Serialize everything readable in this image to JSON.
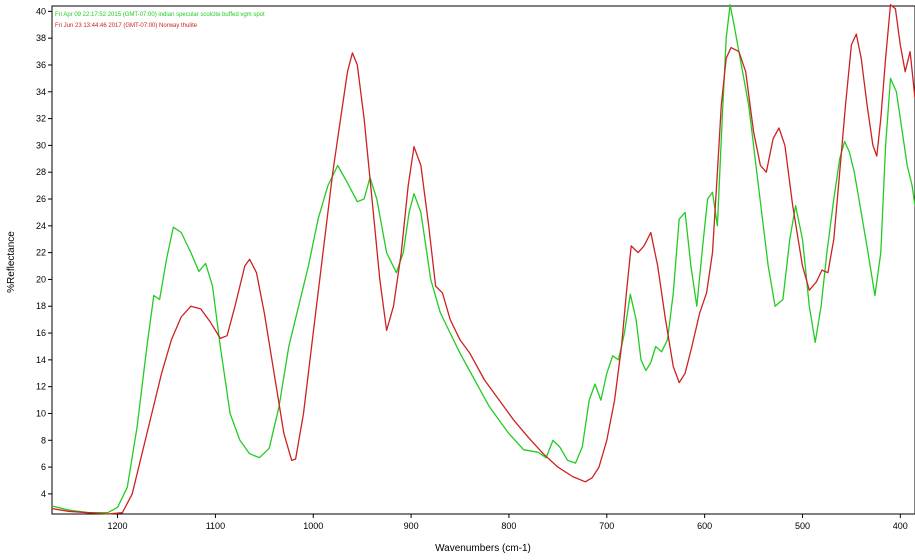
{
  "chart_data": {
    "type": "line",
    "xlabel": "Wavenumbers (cm-1)",
    "ylabel": "%Reflectance",
    "xlim": [
      1267,
      385
    ],
    "ylim": [
      2.5,
      40.4
    ],
    "x_ticks": [
      1200,
      1100,
      1000,
      900,
      800,
      700,
      600,
      500,
      400
    ],
    "y_ticks": [
      4,
      6,
      8,
      10,
      12,
      14,
      16,
      18,
      20,
      22,
      24,
      26,
      28,
      30,
      32,
      34,
      36,
      38,
      40
    ],
    "grid": false,
    "legend_position": "top-left",
    "series": [
      {
        "name": "Fri Apr 09 22:17:52 2015 (GMT-07:00) indian specular scolcite buffed vgm spot",
        "color": "#22cc22",
        "points": [
          [
            1267,
            3.1
          ],
          [
            1250,
            2.8
          ],
          [
            1230,
            2.6
          ],
          [
            1210,
            2.6
          ],
          [
            1200,
            3.0
          ],
          [
            1190,
            4.5
          ],
          [
            1180,
            9.0
          ],
          [
            1170,
            15.0
          ],
          [
            1163,
            18.8
          ],
          [
            1157,
            18.5
          ],
          [
            1150,
            21.5
          ],
          [
            1143,
            23.9
          ],
          [
            1135,
            23.5
          ],
          [
            1125,
            22.0
          ],
          [
            1117,
            20.6
          ],
          [
            1110,
            21.2
          ],
          [
            1103,
            19.5
          ],
          [
            1095,
            15.0
          ],
          [
            1085,
            10.0
          ],
          [
            1075,
            8.0
          ],
          [
            1065,
            7.0
          ],
          [
            1055,
            6.7
          ],
          [
            1045,
            7.4
          ],
          [
            1035,
            10.5
          ],
          [
            1025,
            15.0
          ],
          [
            1015,
            18.0
          ],
          [
            1005,
            21.0
          ],
          [
            995,
            24.5
          ],
          [
            985,
            27.0
          ],
          [
            975,
            28.5
          ],
          [
            965,
            27.2
          ],
          [
            955,
            25.8
          ],
          [
            948,
            26.0
          ],
          [
            942,
            27.6
          ],
          [
            935,
            26.0
          ],
          [
            925,
            22.0
          ],
          [
            915,
            20.5
          ],
          [
            908,
            22.0
          ],
          [
            902,
            25.0
          ],
          [
            897,
            26.4
          ],
          [
            890,
            25.0
          ],
          [
            880,
            20.0
          ],
          [
            870,
            17.5
          ],
          [
            860,
            16.0
          ],
          [
            850,
            14.5
          ],
          [
            835,
            12.5
          ],
          [
            820,
            10.5
          ],
          [
            800,
            8.5
          ],
          [
            785,
            7.3
          ],
          [
            770,
            7.1
          ],
          [
            762,
            6.7
          ],
          [
            755,
            8.0
          ],
          [
            748,
            7.5
          ],
          [
            740,
            6.5
          ],
          [
            732,
            6.3
          ],
          [
            725,
            7.5
          ],
          [
            718,
            11.0
          ],
          [
            712,
            12.2
          ],
          [
            706,
            11.0
          ],
          [
            700,
            13.0
          ],
          [
            694,
            14.3
          ],
          [
            688,
            14.0
          ],
          [
            682,
            16.0
          ],
          [
            676,
            18.9
          ],
          [
            670,
            17.0
          ],
          [
            665,
            14.0
          ],
          [
            660,
            13.2
          ],
          [
            655,
            13.8
          ],
          [
            650,
            15.0
          ],
          [
            644,
            14.6
          ],
          [
            638,
            15.5
          ],
          [
            632,
            19.0
          ],
          [
            626,
            24.5
          ],
          [
            620,
            25.0
          ],
          [
            614,
            21.0
          ],
          [
            608,
            18.0
          ],
          [
            602,
            22.5
          ],
          [
            597,
            26.0
          ],
          [
            592,
            26.5
          ],
          [
            587,
            24.0
          ],
          [
            582,
            32.0
          ],
          [
            578,
            38.0
          ],
          [
            574,
            40.5
          ],
          [
            570,
            39.0
          ],
          [
            565,
            37.0
          ],
          [
            555,
            33.0
          ],
          [
            545,
            27.0
          ],
          [
            535,
            21.0
          ],
          [
            528,
            18.0
          ],
          [
            520,
            18.5
          ],
          [
            513,
            23.0
          ],
          [
            507,
            25.5
          ],
          [
            500,
            23.0
          ],
          [
            493,
            18.0
          ],
          [
            487,
            15.3
          ],
          [
            481,
            18.0
          ],
          [
            475,
            22.0
          ],
          [
            468,
            26.0
          ],
          [
            462,
            29.0
          ],
          [
            457,
            30.3
          ],
          [
            452,
            29.5
          ],
          [
            447,
            28.0
          ],
          [
            440,
            25.0
          ],
          [
            433,
            22.0
          ],
          [
            426,
            18.8
          ],
          [
            420,
            22.0
          ],
          [
            415,
            30.0
          ],
          [
            410,
            35.0
          ],
          [
            404,
            34.0
          ],
          [
            398,
            31.0
          ],
          [
            393,
            28.5
          ],
          [
            388,
            27.0
          ],
          [
            385,
            25.5
          ]
        ]
      },
      {
        "name": "Fri Jun 23 13:44:46 2017 (GMT-07:00) Norway thulite",
        "color": "#cc2222",
        "points": [
          [
            1267,
            2.9
          ],
          [
            1250,
            2.7
          ],
          [
            1230,
            2.6
          ],
          [
            1210,
            2.5
          ],
          [
            1195,
            2.6
          ],
          [
            1185,
            4.0
          ],
          [
            1175,
            7.0
          ],
          [
            1165,
            10.0
          ],
          [
            1155,
            13.0
          ],
          [
            1145,
            15.5
          ],
          [
            1135,
            17.2
          ],
          [
            1125,
            18.0
          ],
          [
            1115,
            17.8
          ],
          [
            1105,
            16.8
          ],
          [
            1095,
            15.6
          ],
          [
            1088,
            15.8
          ],
          [
            1080,
            18.0
          ],
          [
            1070,
            21.0
          ],
          [
            1065,
            21.5
          ],
          [
            1058,
            20.5
          ],
          [
            1050,
            17.5
          ],
          [
            1040,
            13.0
          ],
          [
            1030,
            8.5
          ],
          [
            1022,
            6.5
          ],
          [
            1018,
            6.6
          ],
          [
            1010,
            10.0
          ],
          [
            1000,
            16.0
          ],
          [
            990,
            22.0
          ],
          [
            980,
            28.0
          ],
          [
            972,
            32.0
          ],
          [
            965,
            35.5
          ],
          [
            960,
            36.9
          ],
          [
            955,
            36.0
          ],
          [
            948,
            32.0
          ],
          [
            940,
            26.0
          ],
          [
            932,
            20.0
          ],
          [
            925,
            16.2
          ],
          [
            918,
            18.0
          ],
          [
            910,
            22.0
          ],
          [
            903,
            27.0
          ],
          [
            897,
            29.9
          ],
          [
            890,
            28.5
          ],
          [
            882,
            24.0
          ],
          [
            875,
            19.5
          ],
          [
            868,
            19.0
          ],
          [
            860,
            17.0
          ],
          [
            850,
            15.5
          ],
          [
            840,
            14.5
          ],
          [
            825,
            12.5
          ],
          [
            810,
            11.0
          ],
          [
            795,
            9.5
          ],
          [
            780,
            8.2
          ],
          [
            765,
            7.0
          ],
          [
            750,
            6.0
          ],
          [
            735,
            5.3
          ],
          [
            722,
            4.9
          ],
          [
            715,
            5.2
          ],
          [
            708,
            6.0
          ],
          [
            700,
            8.0
          ],
          [
            692,
            11.0
          ],
          [
            685,
            15.0
          ],
          [
            680,
            19.0
          ],
          [
            675,
            22.5
          ],
          [
            668,
            22.0
          ],
          [
            662,
            22.5
          ],
          [
            655,
            23.5
          ],
          [
            648,
            21.0
          ],
          [
            640,
            17.0
          ],
          [
            632,
            13.5
          ],
          [
            626,
            12.3
          ],
          [
            620,
            13.0
          ],
          [
            613,
            15.0
          ],
          [
            605,
            17.5
          ],
          [
            598,
            19.0
          ],
          [
            592,
            22.0
          ],
          [
            587,
            28.0
          ],
          [
            583,
            33.0
          ],
          [
            578,
            36.5
          ],
          [
            573,
            37.3
          ],
          [
            565,
            37.0
          ],
          [
            558,
            35.5
          ],
          [
            550,
            31.0
          ],
          [
            543,
            28.5
          ],
          [
            537,
            28.0
          ],
          [
            530,
            30.5
          ],
          [
            524,
            31.3
          ],
          [
            518,
            30.0
          ],
          [
            510,
            25.5
          ],
          [
            500,
            21.0
          ],
          [
            493,
            19.2
          ],
          [
            486,
            19.8
          ],
          [
            480,
            20.7
          ],
          [
            474,
            20.5
          ],
          [
            468,
            23.0
          ],
          [
            462,
            28.0
          ],
          [
            456,
            33.0
          ],
          [
            450,
            37.5
          ],
          [
            445,
            38.3
          ],
          [
            440,
            36.5
          ],
          [
            434,
            33.0
          ],
          [
            428,
            30.0
          ],
          [
            424,
            29.2
          ],
          [
            420,
            32.0
          ],
          [
            415,
            36.5
          ],
          [
            410,
            40.5
          ],
          [
            405,
            40.2
          ],
          [
            400,
            37.5
          ],
          [
            395,
            35.5
          ],
          [
            390,
            37.0
          ],
          [
            385,
            33.5
          ]
        ]
      }
    ]
  }
}
